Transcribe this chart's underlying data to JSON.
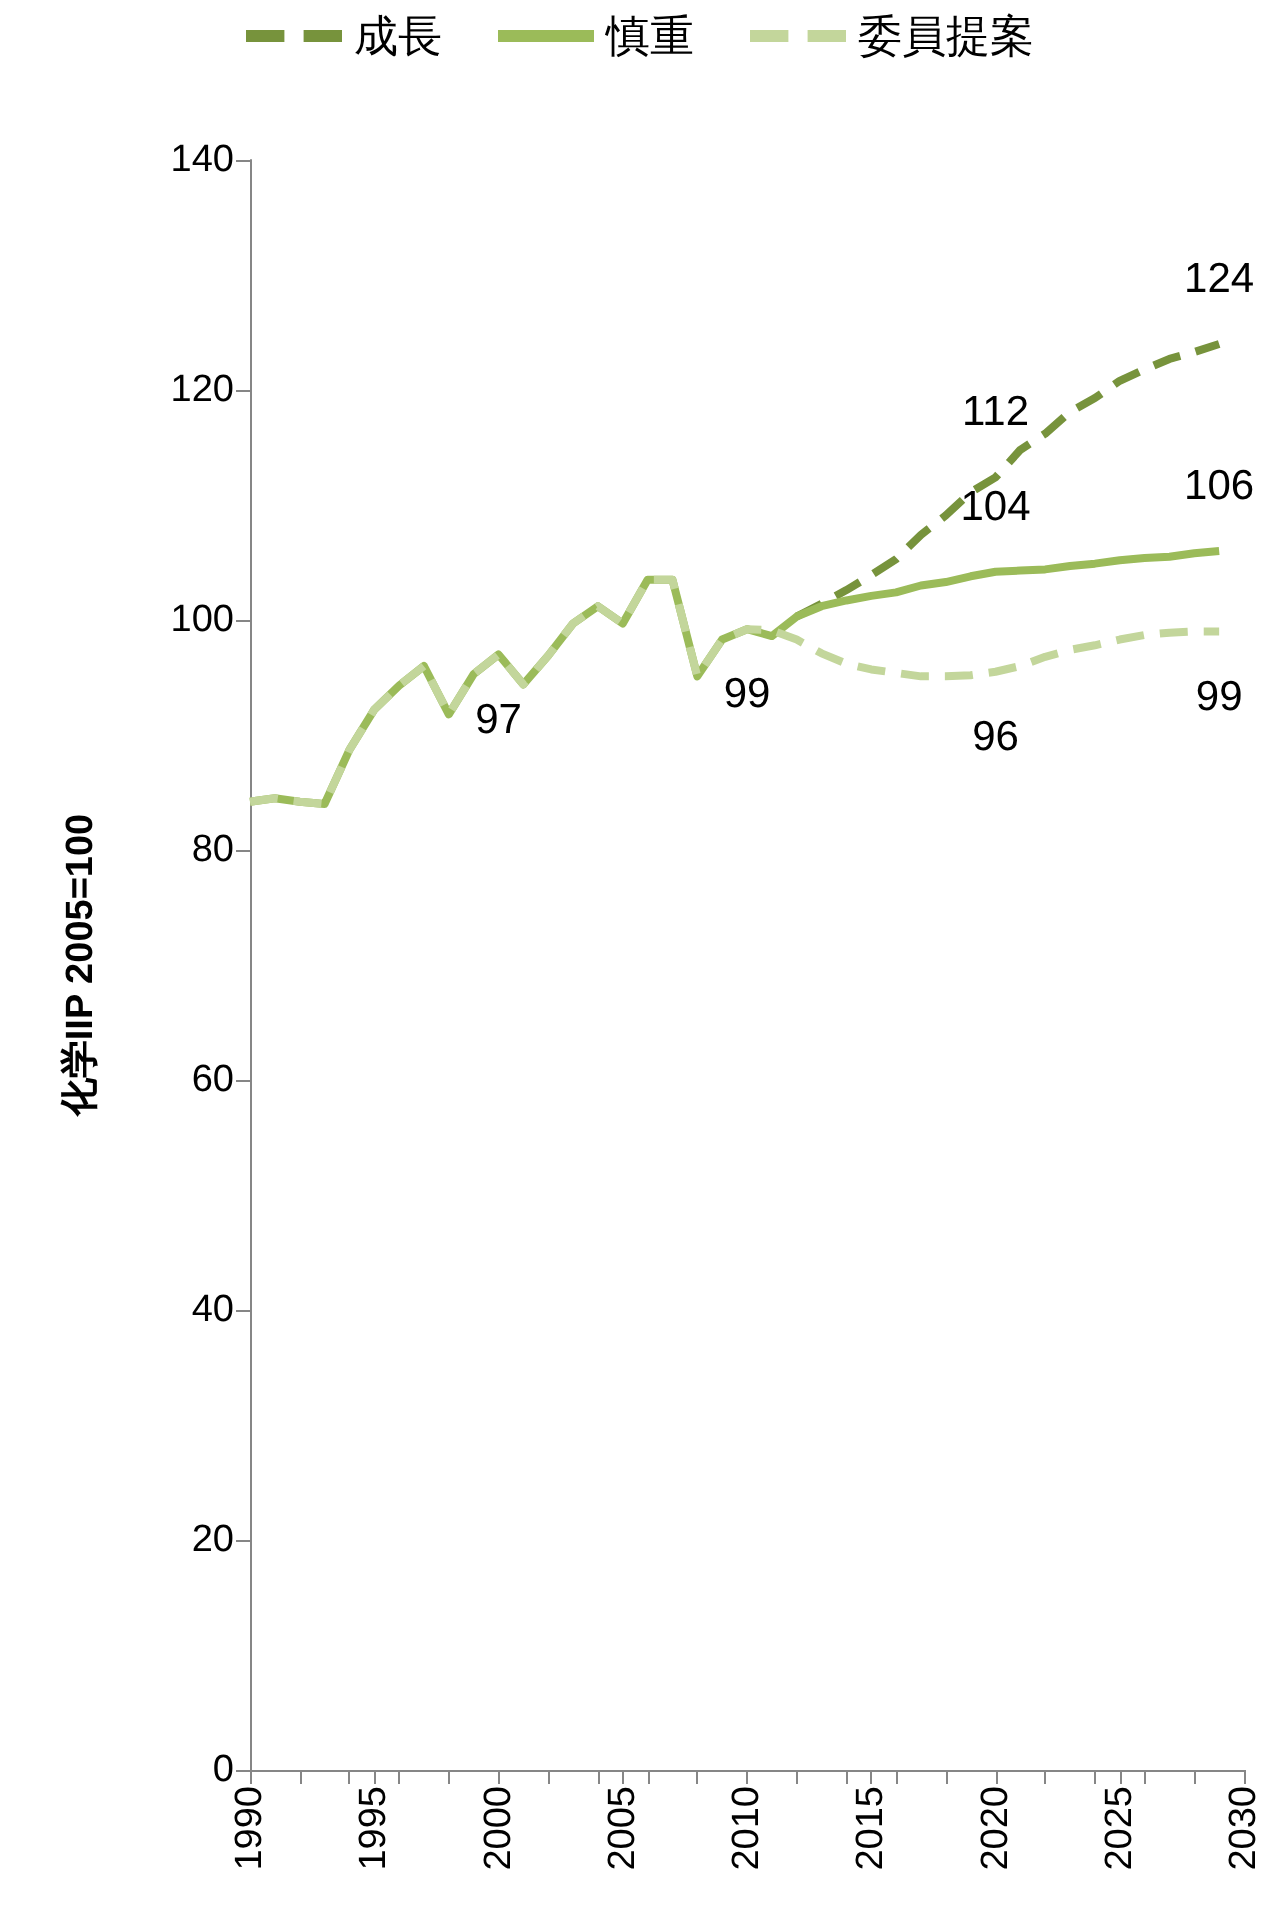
{
  "chart_data": {
    "type": "line",
    "ylabel": "化学IIP 2005=100",
    "legend": "top",
    "grid": false,
    "marker": "none",
    "xlim": [
      1990,
      2030
    ],
    "xticks": [
      1990,
      1995,
      2000,
      2005,
      2010,
      2015,
      2020,
      2025,
      2030
    ],
    "ylim": [
      0,
      140
    ],
    "yticks": [
      0,
      20,
      40,
      60,
      80,
      100,
      120,
      140
    ],
    "series": [
      {
        "name": "成長",
        "color": "#77933c",
        "line_style": "dashed",
        "x": [
          2012,
          2013,
          2014,
          2015,
          2016,
          2017,
          2018,
          2019,
          2020,
          2021,
          2022,
          2023,
          2024,
          2025,
          2026,
          2027,
          2028,
          2029
        ],
        "values": [
          100.3,
          101.4,
          102.6,
          103.9,
          105.3,
          107.4,
          109.1,
          111.1,
          112.4,
          114.8,
          116.2,
          118.1,
          119.3,
          120.8,
          121.8,
          122.7,
          123.3,
          124
        ],
        "value_labels": [
          null,
          null,
          null,
          null,
          null,
          null,
          null,
          null,
          "112",
          null,
          null,
          null,
          null,
          null,
          null,
          null,
          null,
          "124"
        ]
      },
      {
        "name": "慎重",
        "color": "#9bbb59",
        "line_style": "solid",
        "x": [
          1990,
          1991,
          1992,
          1993,
          1994,
          1995,
          1996,
          1997,
          1998,
          1999,
          2000,
          2001,
          2002,
          2003,
          2004,
          2005,
          2006,
          2007,
          2008,
          2009,
          2010,
          2011,
          2012,
          2013,
          2014,
          2015,
          2016,
          2017,
          2018,
          2019,
          2020,
          2021,
          2022,
          2023,
          2024,
          2025,
          2026,
          2027,
          2028,
          2029
        ],
        "values": [
          84.2,
          84.5,
          84.2,
          84.0,
          88.7,
          92.2,
          94.3,
          96.0,
          91.8,
          95.3,
          97.0,
          94.4,
          96.9,
          99.7,
          101.2,
          99.7,
          103.5,
          103.5,
          95.1,
          98.3,
          99.2,
          98.6,
          100.3,
          101.2,
          101.7,
          102.1,
          102.4,
          103.0,
          103.3,
          103.8,
          104.2,
          104.3,
          104.4,
          104.7,
          104.9,
          105.2,
          105.4,
          105.5,
          105.8,
          106
        ],
        "value_labels": [
          null,
          null,
          null,
          null,
          null,
          null,
          null,
          null,
          null,
          null,
          null,
          null,
          null,
          null,
          null,
          null,
          null,
          null,
          null,
          null,
          null,
          null,
          null,
          null,
          null,
          null,
          null,
          null,
          null,
          null,
          "104",
          null,
          null,
          null,
          null,
          null,
          null,
          null,
          null,
          "106"
        ]
      },
      {
        "name": "委員提案",
        "color": "#c3d69b",
        "line_style": "dashed",
        "x": [
          1990,
          1991,
          1992,
          1993,
          1994,
          1995,
          1996,
          1997,
          1998,
          1999,
          2000,
          2001,
          2002,
          2003,
          2004,
          2005,
          2006,
          2007,
          2008,
          2009,
          2010,
          2011,
          2012,
          2013,
          2014,
          2015,
          2016,
          2017,
          2018,
          2019,
          2020,
          2021,
          2022,
          2023,
          2024,
          2025,
          2026,
          2027,
          2028,
          2029
        ],
        "values": [
          84.2,
          84.5,
          84.2,
          84.0,
          88.7,
          92.2,
          94.3,
          96.0,
          91.8,
          95.3,
          97.0,
          94.4,
          96.9,
          99.7,
          101.2,
          99.7,
          103.5,
          103.5,
          95.1,
          98.3,
          99.2,
          99.1,
          98.3,
          97.1,
          96.2,
          95.7,
          95.4,
          95.1,
          95.1,
          95.2,
          95.5,
          96.0,
          96.8,
          97.4,
          97.8,
          98.3,
          98.7,
          98.9,
          99.0,
          99.0
        ],
        "value_labels": [
          null,
          null,
          null,
          null,
          null,
          null,
          null,
          null,
          null,
          null,
          "97",
          null,
          null,
          null,
          null,
          null,
          null,
          null,
          null,
          null,
          "99",
          null,
          null,
          null,
          null,
          null,
          null,
          null,
          null,
          null,
          "96",
          null,
          null,
          null,
          null,
          null,
          null,
          null,
          null,
          "99"
        ]
      }
    ]
  }
}
